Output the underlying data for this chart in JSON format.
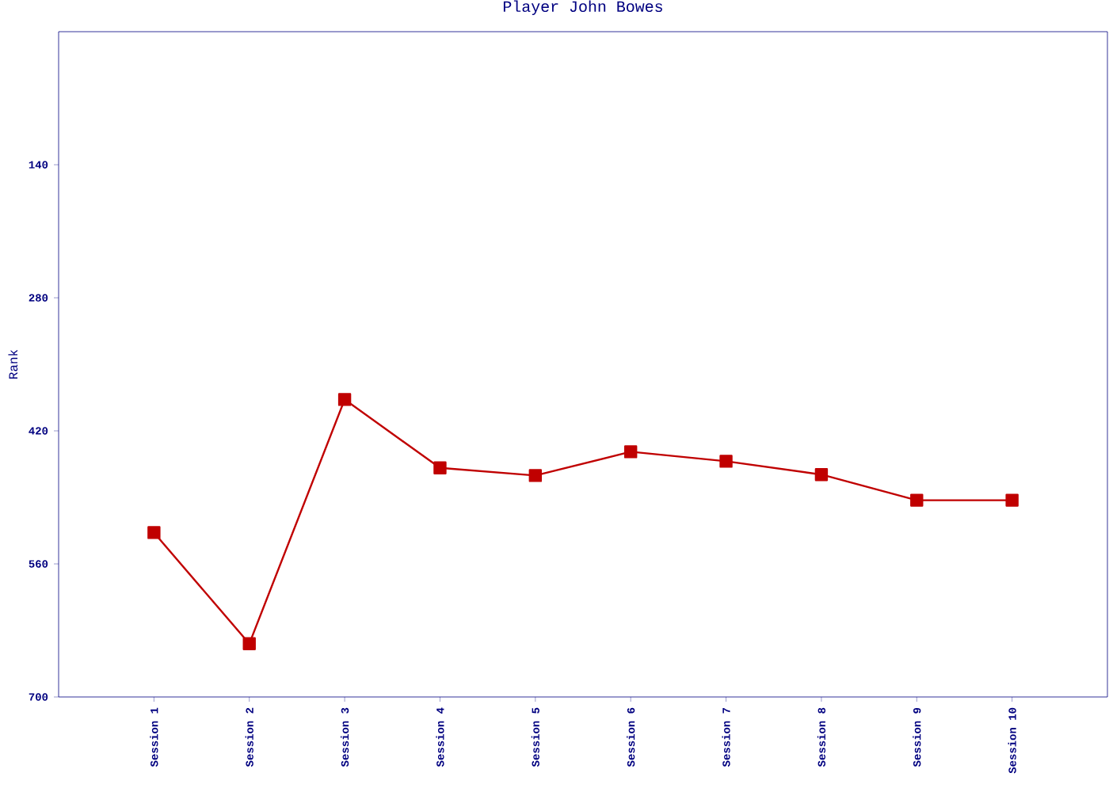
{
  "chart_data": {
    "type": "line",
    "title": "Player John Bowes",
    "ylabel": "Rank",
    "categories": [
      "Session 1",
      "Session 2",
      "Session 3",
      "Session 4",
      "Session 5",
      "Session 6",
      "Session 7",
      "Session 8",
      "Session 9",
      "Session 10"
    ],
    "series": [
      {
        "color": "#c00000",
        "values": [
          527,
          644,
          387,
          459,
          467,
          442,
          452,
          466,
          493,
          493
        ]
      }
    ],
    "ylim": [
      700,
      0
    ],
    "yticks": [
      140,
      280,
      420,
      560,
      700
    ],
    "marker": "square",
    "line_style": "solid",
    "grid": false,
    "legend": false
  }
}
